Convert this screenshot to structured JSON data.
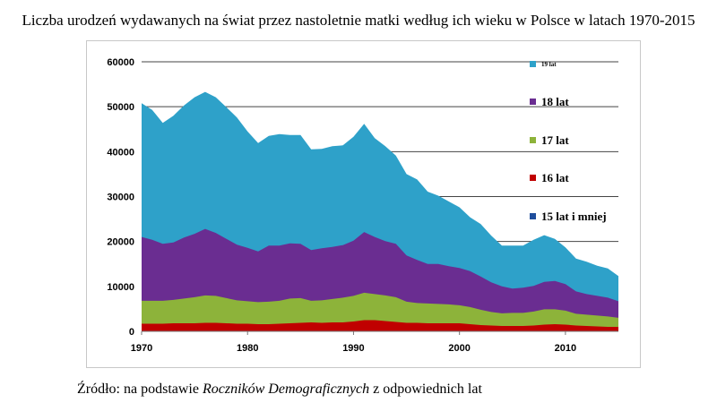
{
  "title": "Liczba urodzeń wydawanych na świat przez nastoletnie matki według ich wieku w Polsce w latach 1970-2015",
  "source": {
    "prefix": "Źródło:  na podstawie ",
    "italic": "Roczników Demograficznych",
    "suffix": " z odpowiednich lat"
  },
  "chart_data": {
    "type": "area",
    "stacked": true,
    "title": "",
    "xlabel": "",
    "ylabel": "",
    "ylim": [
      0,
      60000
    ],
    "xlim": [
      1970,
      2015
    ],
    "x_ticks": [
      1970,
      1980,
      1990,
      2000,
      2010
    ],
    "y_ticks": [
      0,
      10000,
      20000,
      30000,
      40000,
      50000,
      60000
    ],
    "grid": "horizontal",
    "legend_position": "right",
    "x": [
      1970,
      1971,
      1972,
      1973,
      1974,
      1975,
      1976,
      1977,
      1978,
      1979,
      1980,
      1981,
      1982,
      1983,
      1984,
      1985,
      1986,
      1987,
      1988,
      1989,
      1990,
      1991,
      1992,
      1993,
      1994,
      1995,
      1996,
      1997,
      1998,
      1999,
      2000,
      2001,
      2002,
      2003,
      2004,
      2005,
      2006,
      2007,
      2008,
      2009,
      2010,
      2011,
      2012,
      2013,
      2014,
      2015
    ],
    "series": [
      {
        "name": "15 lat i mniej",
        "color": "#1f4e9c",
        "values": [
          100,
          100,
          100,
          100,
          100,
          100,
          100,
          100,
          100,
          100,
          100,
          100,
          100,
          100,
          100,
          100,
          100,
          100,
          100,
          100,
          100,
          100,
          100,
          100,
          100,
          100,
          100,
          100,
          100,
          100,
          100,
          100,
          100,
          100,
          100,
          100,
          100,
          100,
          100,
          100,
          100,
          100,
          100,
          100,
          100,
          100
        ]
      },
      {
        "name": "16 lat",
        "color": "#c00000",
        "values": [
          1600,
          1600,
          1600,
          1700,
          1700,
          1700,
          1800,
          1800,
          1700,
          1600,
          1600,
          1500,
          1500,
          1600,
          1700,
          1800,
          1900,
          1800,
          1900,
          1900,
          2100,
          2400,
          2400,
          2200,
          2000,
          1800,
          1800,
          1700,
          1700,
          1700,
          1700,
          1500,
          1300,
          1200,
          1100,
          1100,
          1100,
          1200,
          1400,
          1500,
          1400,
          1200,
          1100,
          1000,
          900,
          900
        ]
      },
      {
        "name": "17 lat",
        "color": "#8db33a",
        "values": [
          5100,
          5100,
          5100,
          5200,
          5500,
          5800,
          6100,
          6000,
          5600,
          5200,
          5000,
          4900,
          5000,
          5100,
          5500,
          5500,
          4800,
          5000,
          5200,
          5500,
          5700,
          6100,
          5800,
          5700,
          5500,
          4700,
          4400,
          4400,
          4300,
          4200,
          4000,
          3800,
          3400,
          3000,
          2800,
          2900,
          2900,
          3100,
          3400,
          3300,
          3100,
          2600,
          2500,
          2400,
          2300,
          2000
        ]
      },
      {
        "name": "18 lat",
        "color": "#6a2d91",
        "values": [
          14200,
          13600,
          12700,
          12800,
          13600,
          14100,
          14800,
          14000,
          13200,
          12400,
          11900,
          11300,
          12500,
          12300,
          12300,
          12100,
          11300,
          11600,
          11600,
          11700,
          12300,
          13500,
          12700,
          12100,
          11900,
          10300,
          9600,
          8800,
          8900,
          8500,
          8300,
          8000,
          7400,
          6600,
          6000,
          5400,
          5600,
          5700,
          6100,
          6300,
          5900,
          5000,
          4600,
          4400,
          4200,
          3700
        ]
      },
      {
        "name": "19 lat",
        "color": "#2ea1c9",
        "values": [
          29800,
          28900,
          26900,
          28200,
          29400,
          30400,
          30500,
          30200,
          29300,
          28300,
          25900,
          24100,
          24400,
          24800,
          24100,
          24200,
          22400,
          22100,
          22400,
          22200,
          23100,
          24100,
          22000,
          21100,
          19600,
          18100,
          17900,
          16100,
          15200,
          14400,
          13500,
          12000,
          11700,
          10400,
          9100,
          9600,
          9400,
          10300,
          10400,
          9400,
          8200,
          7300,
          7200,
          6700,
          6500,
          5600
        ]
      }
    ]
  },
  "legend_labels": [
    "19 lat",
    "18 lat",
    "17 lat",
    "16 lat",
    "15 lat i mniej"
  ],
  "x_tick_labels": [
    "1970",
    "1980",
    "1990",
    "2000",
    "2010"
  ],
  "y_tick_labels": [
    "0",
    "10000",
    "20000",
    "30000",
    "40000",
    "50000",
    "60000"
  ]
}
